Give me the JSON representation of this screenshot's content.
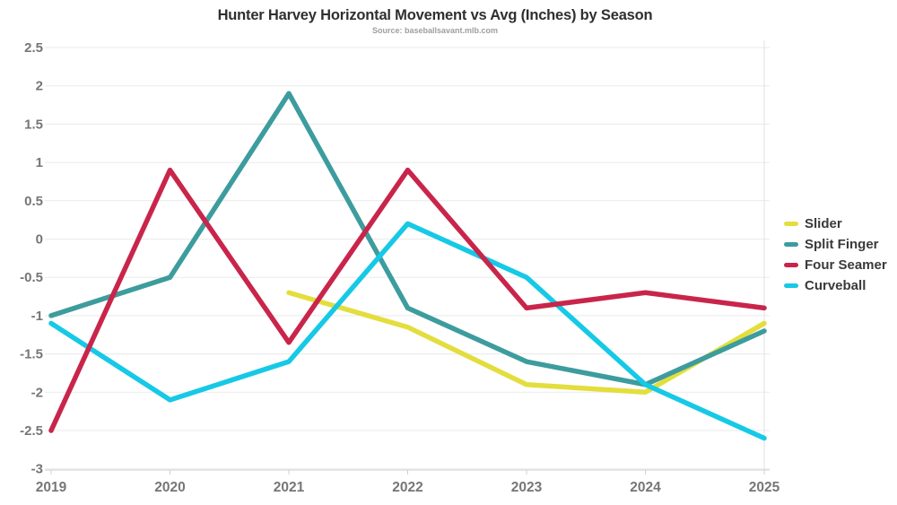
{
  "title": "Hunter Harvey Horizontal Movement vs Avg (Inches) by Season",
  "subtitle": "Source: baseballsavant.mlb.com",
  "colors": {
    "background": "#ffffff",
    "title_text": "#2f2f2f",
    "subtitle_text": "#9e9e9e",
    "axis_label_text": "#767676",
    "gridline": "#eaeaea",
    "axis_line": "#cfcfcf",
    "right_gridline": "#e0e0e0"
  },
  "chart_data": {
    "type": "line",
    "title": "Hunter Harvey Horizontal Movement vs Avg (Inches) by Season",
    "subtitle": "Source: baseballsavant.mlb.com",
    "categories": [
      "2019",
      "2020",
      "2021",
      "2022",
      "2023",
      "2024",
      "2025"
    ],
    "series": [
      {
        "name": "Slider",
        "color": "#e3de3d",
        "values": [
          null,
          null,
          -0.7,
          -1.15,
          -1.9,
          -2.0,
          -1.1
        ]
      },
      {
        "name": "Split Finger",
        "color": "#3d9c9d",
        "values": [
          -1.0,
          -0.5,
          1.9,
          -0.9,
          -1.6,
          -1.9,
          -1.2
        ]
      },
      {
        "name": "Four Seamer",
        "color": "#c9254b",
        "values": [
          -2.5,
          0.9,
          -1.35,
          0.9,
          -0.9,
          -0.7,
          -0.9
        ]
      },
      {
        "name": "Curveball",
        "color": "#16c9e6",
        "values": [
          -1.1,
          -2.1,
          -1.6,
          0.2,
          -0.5,
          -1.9,
          -2.6
        ]
      }
    ],
    "draw_order": [
      "Slider",
      "Split Finger",
      "Curveball",
      "Four Seamer"
    ],
    "xlabel": "",
    "ylabel": "",
    "ylim": [
      -3,
      2.5
    ],
    "ytick_step": 0.5,
    "grid": "horizontal",
    "legend_position": "right"
  }
}
